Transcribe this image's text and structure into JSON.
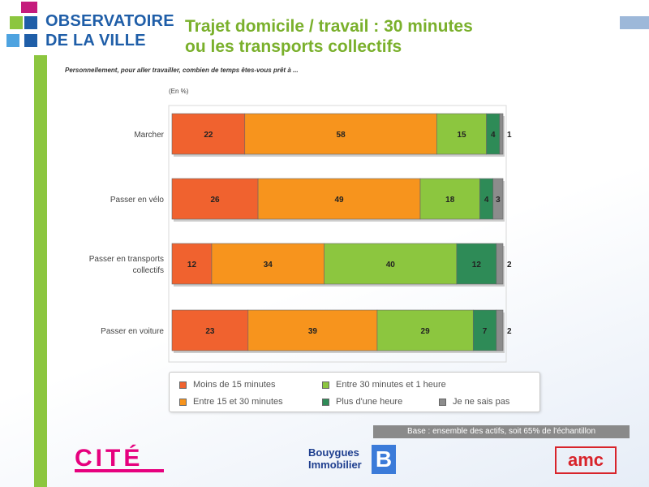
{
  "header": {
    "logo_line1": "OBSERVATOIRE",
    "logo_line2": "DE LA VILLE",
    "title_line1": "Trajet domicile / travail : 30 minutes",
    "title_line2": "ou les transports collectifs",
    "question": "Personnellement, pour aller travailler, combien de temps êtes-vous prêt à ...",
    "unit": "(En %)"
  },
  "colors": {
    "lt15": "#f0622f",
    "15to30": "#f7941d",
    "30to60": "#8cc63f",
    "gt60": "#2e8b57",
    "nsp": "#8c8c8c",
    "brand_green": "#8cc63f",
    "brand_blue": "#1f5ea8"
  },
  "chart_data": {
    "type": "bar",
    "orientation": "horizontal",
    "stacked": true,
    "categories": [
      "Marcher",
      "Passer en vélo",
      "Passer en transports collectifs",
      "Passer en voiture"
    ],
    "category_lines": [
      [
        "Marcher"
      ],
      [
        "Passer en vélo"
      ],
      [
        "Passer en transports",
        "collectifs"
      ],
      [
        "Passer en voiture"
      ]
    ],
    "series": [
      {
        "name": "Moins de 15 minutes",
        "key": "lt15",
        "values": [
          22,
          26,
          12,
          23
        ]
      },
      {
        "name": "Entre 15 et 30 minutes",
        "key": "15to30",
        "values": [
          58,
          49,
          34,
          39
        ]
      },
      {
        "name": "Entre 30 minutes et 1 heure",
        "key": "30to60",
        "values": [
          15,
          18,
          40,
          29
        ]
      },
      {
        "name": "Plus d'une heure",
        "key": "gt60",
        "values": [
          4,
          4,
          12,
          7
        ]
      },
      {
        "name": "Je ne sais pas",
        "key": "nsp",
        "values": [
          1,
          3,
          2,
          2
        ]
      }
    ],
    "xlim": [
      0,
      100
    ],
    "legend_position": "bottom"
  },
  "footer": {
    "base_note": "Base : ensemble des actifs, soit 65% de l'échantillon",
    "logo_cite": "CITÉ",
    "logo_bouygues_line1": "Bouygues",
    "logo_bouygues_line2": "Immobilier",
    "logo_amc": "amc"
  }
}
